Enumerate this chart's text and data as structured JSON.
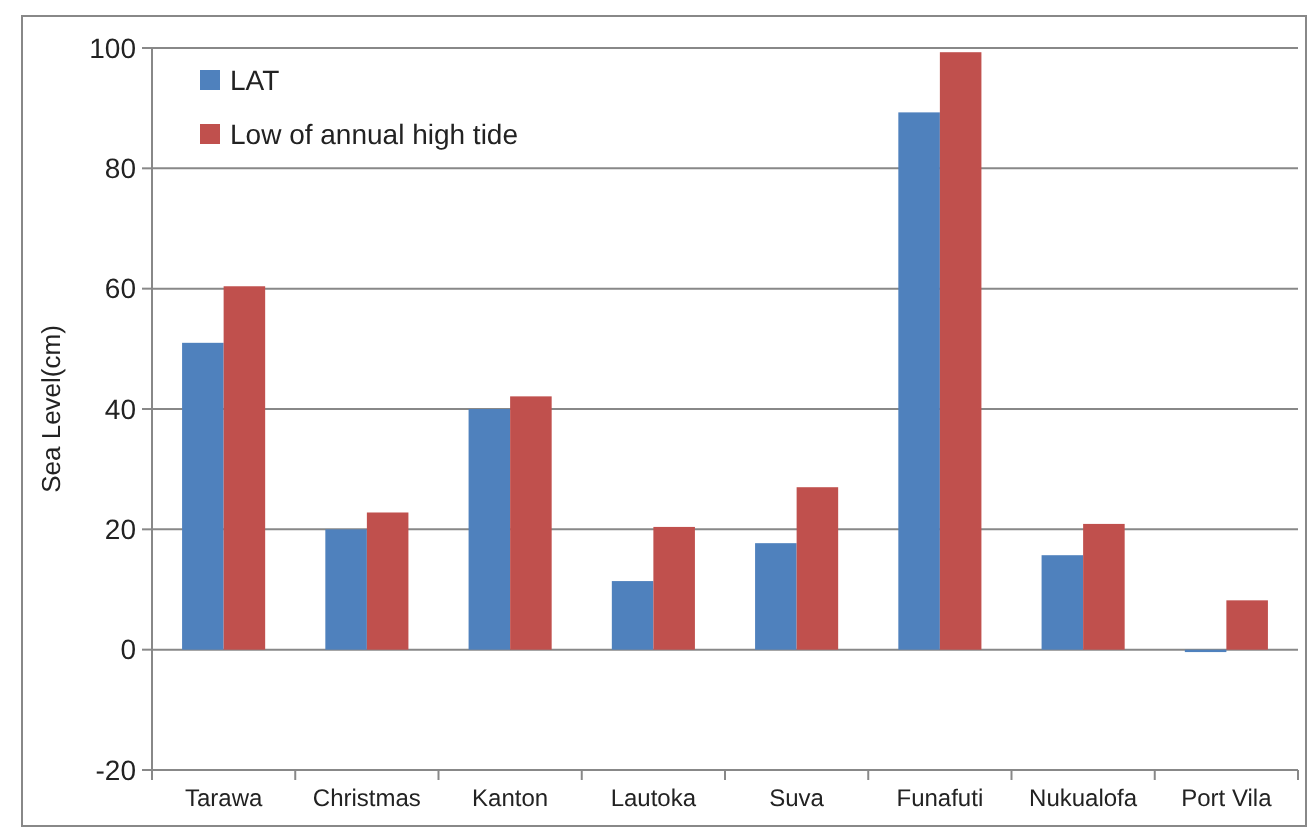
{
  "chart_data": {
    "type": "bar",
    "ylabel": "Sea Level(cm)",
    "categories": [
      "Tarawa",
      "Christmas",
      "Kanton",
      "Lautoka",
      "Suva",
      "Funafuti",
      "Nukualofa",
      "Port Vila"
    ],
    "series": [
      {
        "name": "LAT",
        "color": "#4f81bd",
        "values": [
          51,
          20,
          40,
          11.4,
          17.7,
          89.3,
          15.7,
          -0.4
        ]
      },
      {
        "name": "Low of annual high tide",
        "color": "#c0504d",
        "values": [
          60.4,
          22.8,
          42.1,
          20.4,
          27,
          99.3,
          20.9,
          8.2
        ]
      }
    ],
    "ylim": [
      -20,
      100
    ],
    "yticks": [
      -20,
      0,
      20,
      40,
      60,
      80,
      100
    ],
    "grid": "y",
    "legend": "top left"
  }
}
